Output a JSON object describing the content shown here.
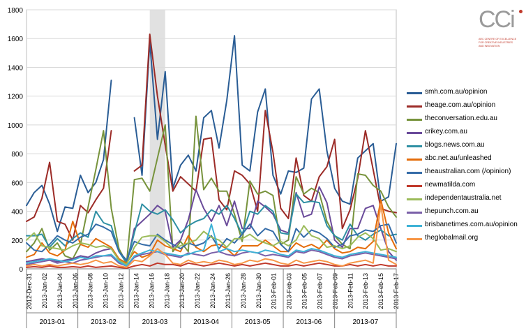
{
  "chart_data": {
    "type": "line",
    "title": "",
    "xlabel": "",
    "ylabel": "",
    "ylim": [
      0,
      1800
    ],
    "y_ticks": [
      "0",
      "200",
      "400",
      "600",
      "800",
      "1000",
      "1200",
      "1400",
      "1600",
      "1800"
    ],
    "grid": true,
    "legend_placement": "right",
    "x_tick_labels": [
      "2012-Dec-31",
      "2013-Jan-02",
      "2013-Jan-04",
      "2013-Jan-06",
      "2013-Jan-08",
      "2013-Jan-10",
      "2013-Jan-12",
      "2013-Jan-14",
      "2013-Jan-16",
      "2013-Jan-18",
      "2013-Jan-20",
      "2013-Jan-22",
      "2013-Jan-24",
      "2013-Jan-26",
      "2013-Jan-28",
      "2013-Jan-30",
      "2013-Feb-01",
      "2013-Feb-03",
      "2013-Feb-05",
      "2013-Feb-07",
      "2013-Feb-09",
      "2013-Feb-11",
      "2013-Feb-13",
      "2013-Feb-15",
      "2013-Feb-17"
    ],
    "month_groups": [
      {
        "label": "2013-01",
        "start": 0,
        "end": 5
      },
      {
        "label": "2013-02",
        "start": 5,
        "end": 10
      },
      {
        "label": "2013-03",
        "start": 10,
        "end": 15
      },
      {
        "label": "2013-04",
        "start": 15,
        "end": 20
      },
      {
        "label": "2013-05",
        "start": 20,
        "end": 25
      },
      {
        "label": "2013-06",
        "start": 25,
        "end": 30
      },
      {
        "label": "2013-07",
        "start": 30,
        "end": 36
      }
    ],
    "highlight_band": {
      "start": 16,
      "end": 18
    },
    "series": [
      {
        "name": "smh.com.au/opinion",
        "color": "#2a5d95",
        "values": [
          440,
          530,
          580,
          450,
          260,
          430,
          420,
          650,
          530,
          600,
          760,
          1310,
          null,
          null,
          1050,
          650,
          1580,
          900,
          1370,
          560,
          720,
          790,
          680,
          1050,
          1100,
          840,
          1170,
          1620,
          720,
          680,
          1090,
          1250,
          650,
          520,
          680,
          670,
          700,
          1180,
          1250,
          820,
          560,
          470,
          450,
          770,
          820,
          870,
          470,
          500,
          870
        ]
      },
      {
        "name": "theage.com.au/opinion",
        "color": "#9c2b27",
        "values": [
          330,
          360,
          490,
          740,
          330,
          310,
          200,
          440,
          390,
          480,
          560,
          960,
          null,
          null,
          680,
          720,
          1630,
          1200,
          860,
          540,
          640,
          590,
          540,
          900,
          910,
          480,
          410,
          680,
          650,
          590,
          400,
          1100,
          810,
          420,
          350,
          770,
          510,
          470,
          640,
          710,
          900,
          280,
          410,
          630,
          960,
          690,
          420,
          400,
          390
        ]
      },
      {
        "name": "theconversation.edu.au",
        "color": "#77933c",
        "values": [
          120,
          180,
          280,
          130,
          180,
          90,
          70,
          170,
          430,
          690,
          960,
          420,
          140,
          40,
          620,
          630,
          540,
          770,
          1000,
          120,
          190,
          120,
          1060,
          550,
          630,
          540,
          540,
          380,
          190,
          610,
          520,
          540,
          510,
          170,
          200,
          640,
          520,
          560,
          530,
          330,
          230,
          170,
          140,
          660,
          650,
          580,
          540,
          430,
          360
        ]
      },
      {
        "name": "crikey.com.au",
        "color": "#6a4b9a",
        "values": [
          50,
          60,
          70,
          60,
          50,
          60,
          70,
          90,
          80,
          110,
          130,
          140,
          60,
          30,
          280,
          330,
          380,
          440,
          400,
          150,
          200,
          340,
          550,
          420,
          330,
          440,
          300,
          470,
          280,
          280,
          470,
          430,
          380,
          270,
          250,
          530,
          360,
          380,
          570,
          460,
          200,
          150,
          280,
          280,
          420,
          440,
          280,
          120,
          60
        ]
      },
      {
        "name": "blogs.news.com.au",
        "color": "#2e8fa3",
        "values": [
          230,
          230,
          240,
          150,
          210,
          160,
          210,
          250,
          220,
          400,
          320,
          300,
          120,
          40,
          250,
          450,
          400,
          380,
          410,
          340,
          250,
          300,
          330,
          350,
          410,
          380,
          440,
          350,
          240,
          400,
          380,
          440,
          400,
          250,
          240,
          520,
          460,
          470,
          460,
          300,
          230,
          200,
          310,
          230,
          200,
          240,
          270,
          230,
          240
        ]
      },
      {
        "name": "abc.net.au/unleashed",
        "color": "#e46c0a",
        "values": [
          80,
          100,
          180,
          110,
          90,
          130,
          330,
          170,
          150,
          210,
          180,
          150,
          70,
          40,
          120,
          80,
          100,
          200,
          160,
          140,
          120,
          230,
          150,
          120,
          160,
          170,
          140,
          90,
          160,
          160,
          160,
          200,
          160,
          120,
          120,
          180,
          150,
          170,
          140,
          200,
          140,
          110,
          120,
          150,
          140,
          190,
          480,
          250,
          140
        ]
      },
      {
        "name": "theaustralian.com (/opinion)",
        "color": "#356ca8",
        "values": [
          180,
          130,
          120,
          170,
          230,
          200,
          180,
          220,
          240,
          310,
          290,
          260,
          120,
          60,
          190,
          170,
          160,
          240,
          200,
          170,
          140,
          180,
          160,
          180,
          230,
          140,
          210,
          180,
          240,
          310,
          230,
          280,
          260,
          170,
          120,
          280,
          220,
          270,
          250,
          210,
          150,
          170,
          230,
          240,
          270,
          260,
          300,
          310,
          180
        ]
      },
      {
        "name": "newmatilda.com",
        "color": "#c0392b",
        "values": [
          10,
          15,
          10,
          20,
          10,
          10,
          15,
          10,
          20,
          10,
          15,
          20,
          10,
          5,
          20,
          30,
          20,
          40,
          30,
          30,
          20,
          40,
          30,
          20,
          30,
          40,
          30,
          20,
          30,
          20,
          30,
          40,
          30,
          20,
          20,
          30,
          20,
          30,
          40,
          30,
          20,
          20,
          30,
          20,
          30,
          20,
          30,
          20,
          20
        ]
      },
      {
        "name": "independentaustralia.net",
        "color": "#9bbb59",
        "values": [
          200,
          250,
          160,
          150,
          140,
          130,
          160,
          180,
          170,
          150,
          160,
          140,
          60,
          30,
          150,
          220,
          230,
          230,
          190,
          140,
          160,
          180,
          200,
          260,
          220,
          200,
          150,
          210,
          210,
          240,
          200,
          180,
          160,
          190,
          160,
          200,
          300,
          230,
          210,
          150,
          160,
          140,
          160,
          220,
          250,
          210,
          130,
          140,
          120
        ]
      },
      {
        "name": "thepunch.com.au",
        "color": "#7a5fa8",
        "values": [
          30,
          40,
          50,
          60,
          40,
          50,
          40,
          60,
          70,
          80,
          90,
          90,
          40,
          20,
          80,
          100,
          110,
          120,
          100,
          90,
          80,
          110,
          100,
          90,
          110,
          120,
          100,
          90,
          110,
          120,
          110,
          90,
          100,
          90,
          80,
          120,
          110,
          130,
          120,
          100,
          80,
          70,
          90,
          100,
          110,
          100,
          90,
          80,
          70
        ]
      },
      {
        "name": "brisbanetimes.com.au/opinion",
        "color": "#3eb2d6",
        "values": [
          40,
          50,
          60,
          70,
          60,
          50,
          60,
          80,
          70,
          90,
          90,
          100,
          50,
          20,
          90,
          110,
          130,
          120,
          110,
          100,
          90,
          100,
          120,
          130,
          310,
          120,
          140,
          120,
          130,
          120,
          110,
          130,
          120,
          100,
          90,
          130,
          120,
          140,
          130,
          110,
          90,
          80,
          100,
          110,
          120,
          110,
          100,
          90,
          80
        ]
      },
      {
        "name": "theglobalmail.org",
        "color": "#f79646",
        "values": [
          20,
          30,
          20,
          30,
          20,
          30,
          40,
          30,
          40,
          60,
          40,
          50,
          20,
          10,
          60,
          50,
          90,
          140,
          100,
          40,
          30,
          60,
          40,
          50,
          40,
          60,
          50,
          30,
          40,
          60,
          50,
          70,
          60,
          40,
          30,
          60,
          40,
          50,
          60,
          50,
          30,
          20,
          40,
          50,
          60,
          40,
          450,
          60,
          30
        ]
      }
    ]
  },
  "logo": {
    "mark": "CCi",
    "line1": "ARC CENTRE OF EXCELLENCE",
    "line2": "FOR CREATIVE INDUSTRIES",
    "line3": "AND INNOVATION"
  }
}
